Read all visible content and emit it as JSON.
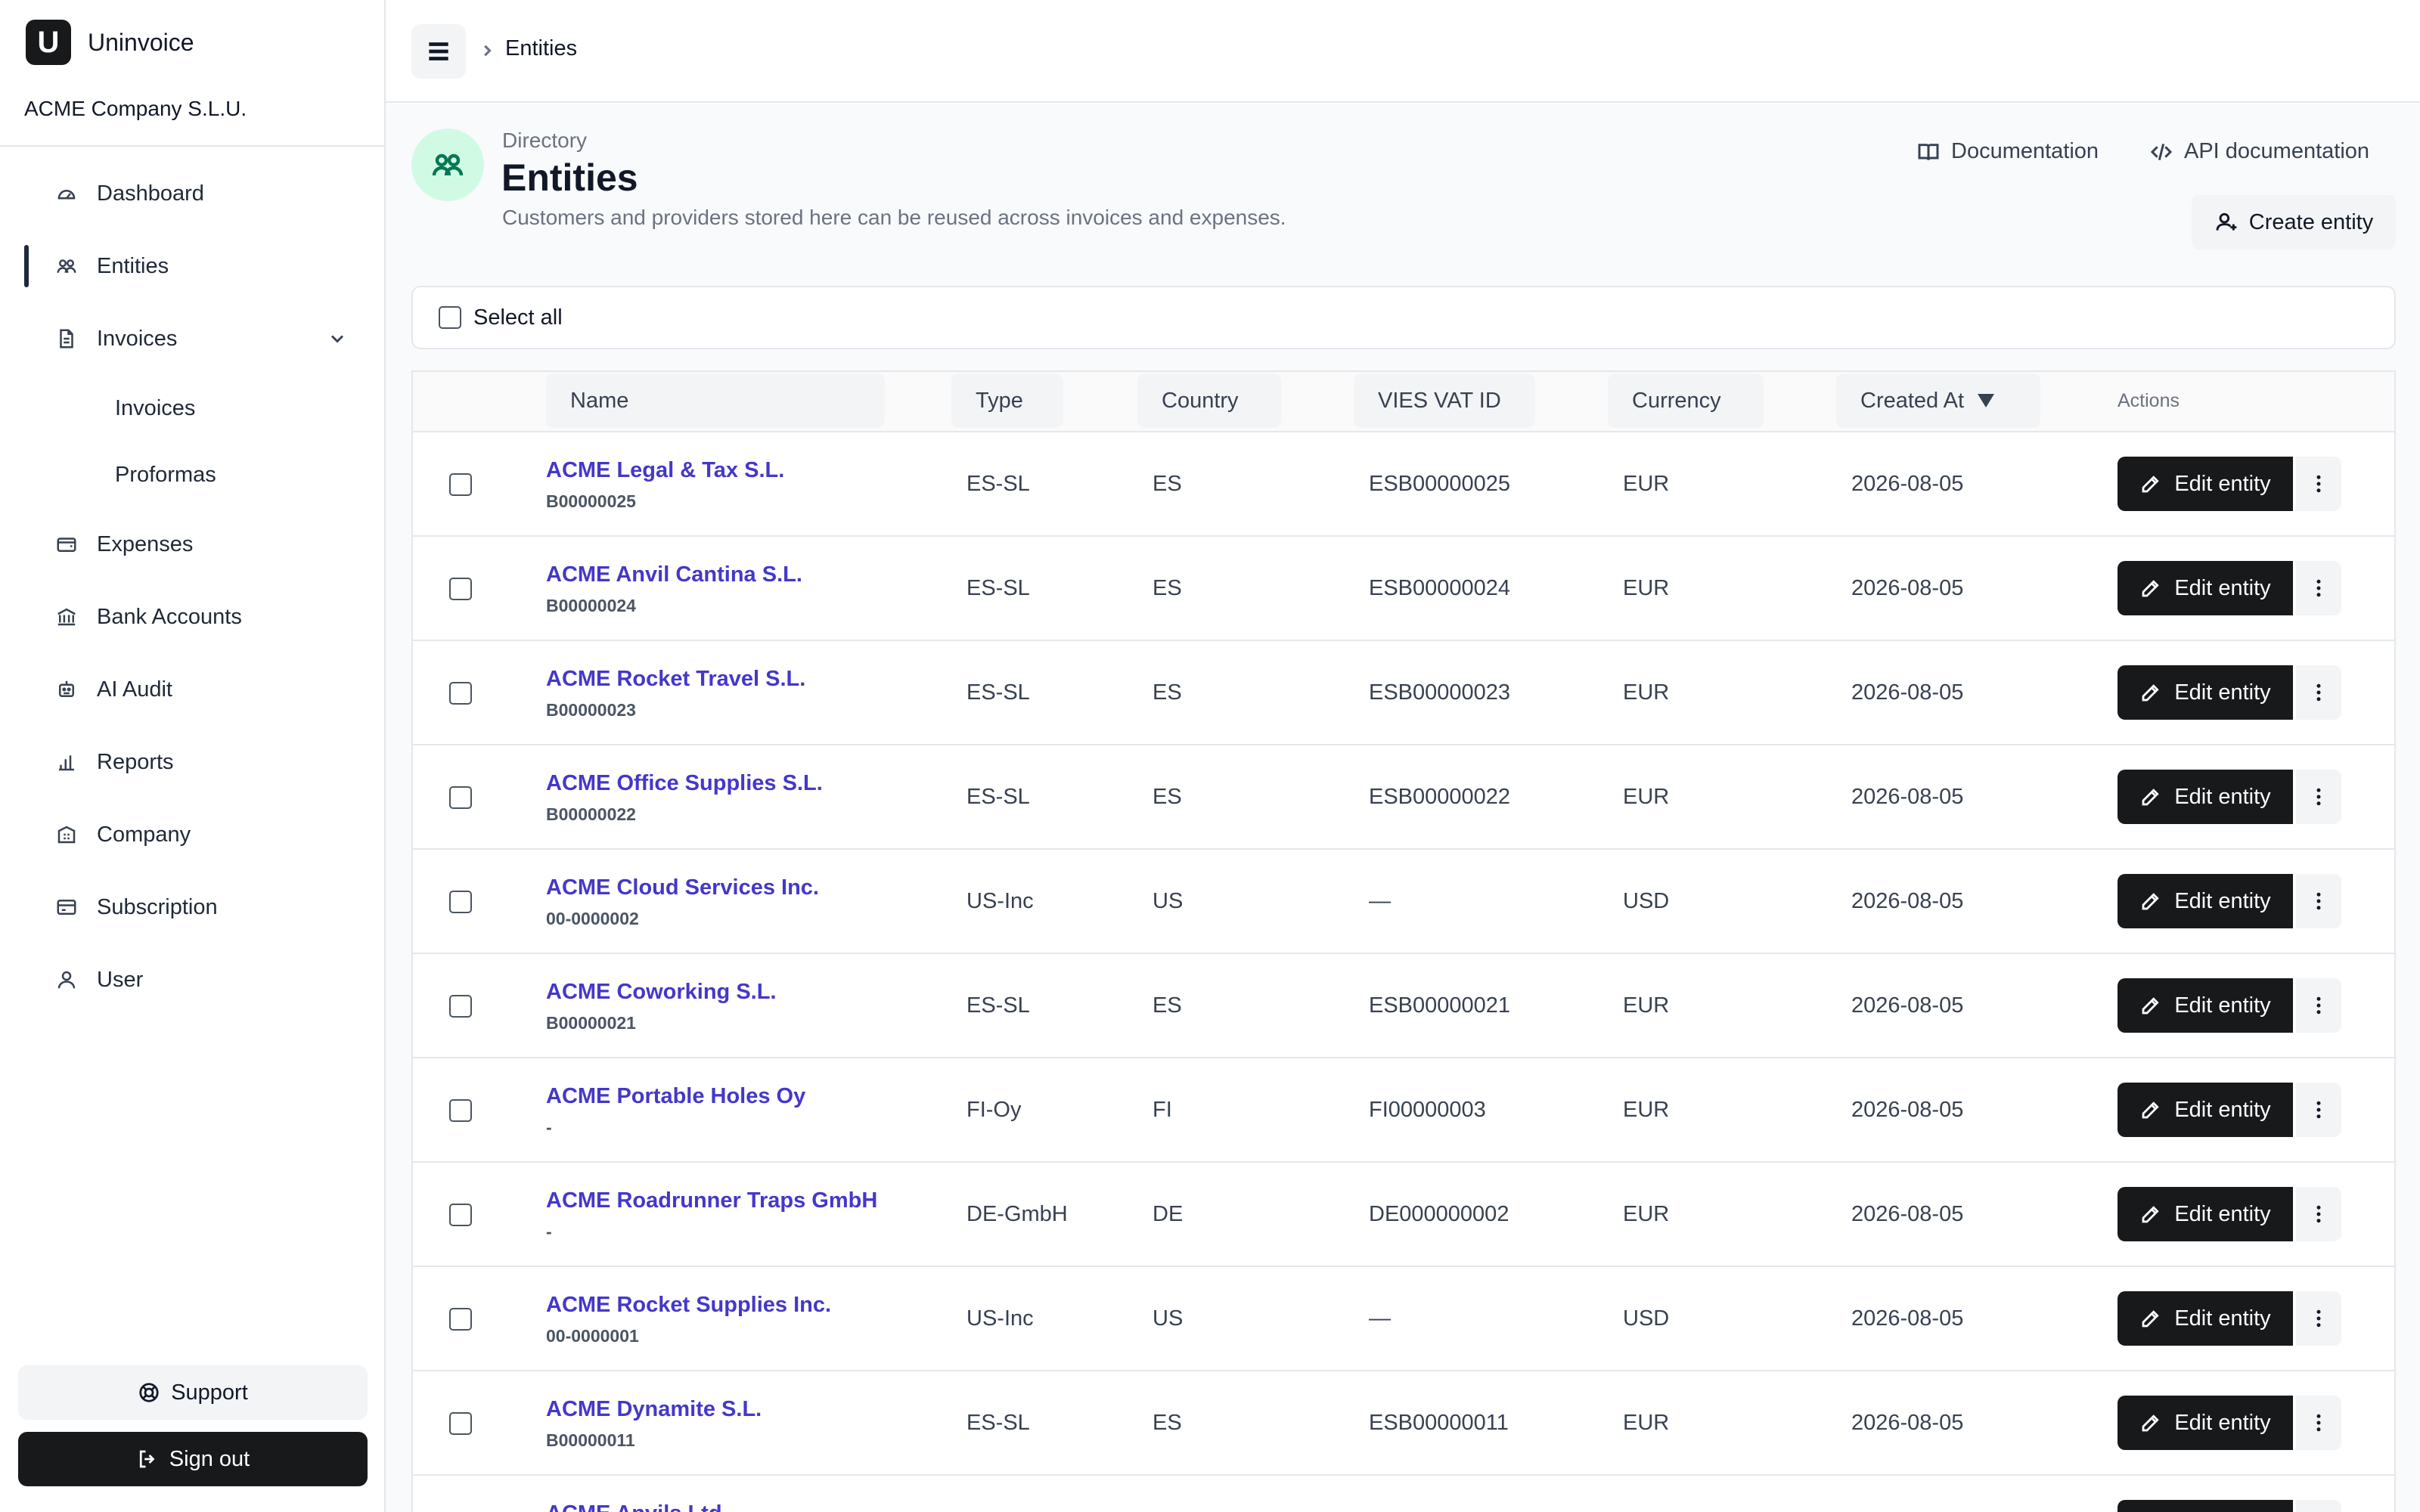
{
  "app": {
    "logo_letter": "U",
    "name": "Uninvoice",
    "company": "ACME Company S.L.U."
  },
  "sidebar": {
    "items": [
      {
        "label": "Dashboard",
        "icon": "dashboard-gauge-icon"
      },
      {
        "label": "Entities",
        "icon": "users-icon",
        "active": true
      },
      {
        "label": "Invoices",
        "icon": "document-icon",
        "expanded": true
      },
      {
        "label": "Expenses",
        "icon": "wallet-icon"
      },
      {
        "label": "Bank Accounts",
        "icon": "bank-icon"
      },
      {
        "label": "AI Audit",
        "icon": "robot-icon"
      },
      {
        "label": "Reports",
        "icon": "bar-chart-icon"
      },
      {
        "label": "Company",
        "icon": "building-icon"
      },
      {
        "label": "Subscription",
        "icon": "credit-card-icon"
      },
      {
        "label": "User",
        "icon": "user-icon"
      }
    ],
    "invoices_sub": [
      {
        "label": "Invoices"
      },
      {
        "label": "Proformas"
      }
    ],
    "support_label": "Support",
    "signout_label": "Sign out"
  },
  "topbar": {
    "breadcrumb": "Entities"
  },
  "header": {
    "eyebrow": "Directory",
    "title": "Entities",
    "description": "Customers and providers stored here can be reused across invoices and expenses.",
    "doc_link": "Documentation",
    "api_doc_link": "API documentation",
    "create_label": "Create entity"
  },
  "select_all_label": "Select all",
  "table": {
    "columns": {
      "name": "Name",
      "type": "Type",
      "country": "Country",
      "vat": "VIES VAT ID",
      "currency": "Currency",
      "created": "Created At",
      "actions": "Actions"
    },
    "sort": {
      "column": "Created At",
      "direction": "desc"
    },
    "edit_label": "Edit entity",
    "rows": [
      {
        "name": "ACME Legal & Tax S.L.",
        "tax_id": "B00000025",
        "type": "ES-SL",
        "country": "ES",
        "vat": "ESB00000025",
        "currency": "EUR",
        "created": "2026-08-05"
      },
      {
        "name": "ACME Anvil Cantina S.L.",
        "tax_id": "B00000024",
        "type": "ES-SL",
        "country": "ES",
        "vat": "ESB00000024",
        "currency": "EUR",
        "created": "2026-08-05"
      },
      {
        "name": "ACME Rocket Travel S.L.",
        "tax_id": "B00000023",
        "type": "ES-SL",
        "country": "ES",
        "vat": "ESB00000023",
        "currency": "EUR",
        "created": "2026-08-05"
      },
      {
        "name": "ACME Office Supplies S.L.",
        "tax_id": "B00000022",
        "type": "ES-SL",
        "country": "ES",
        "vat": "ESB00000022",
        "currency": "EUR",
        "created": "2026-08-05"
      },
      {
        "name": "ACME Cloud Services Inc.",
        "tax_id": "00-0000002",
        "type": "US-Inc",
        "country": "US",
        "vat": "—",
        "currency": "USD",
        "created": "2026-08-05"
      },
      {
        "name": "ACME Coworking S.L.",
        "tax_id": "B00000021",
        "type": "ES-SL",
        "country": "ES",
        "vat": "ESB00000021",
        "currency": "EUR",
        "created": "2026-08-05"
      },
      {
        "name": "ACME Portable Holes Oy",
        "tax_id": "-",
        "type": "FI-Oy",
        "country": "FI",
        "vat": "FI00000003",
        "currency": "EUR",
        "created": "2026-08-05"
      },
      {
        "name": "ACME Roadrunner Traps GmbH",
        "tax_id": "-",
        "type": "DE-GmbH",
        "country": "DE",
        "vat": "DE000000002",
        "currency": "EUR",
        "created": "2026-08-05"
      },
      {
        "name": "ACME Rocket Supplies Inc.",
        "tax_id": "00-0000001",
        "type": "US-Inc",
        "country": "US",
        "vat": "—",
        "currency": "USD",
        "created": "2026-08-05"
      },
      {
        "name": "ACME Dynamite S.L.",
        "tax_id": "B00000011",
        "type": "ES-SL",
        "country": "ES",
        "vat": "ESB00000011",
        "currency": "EUR",
        "created": "2026-08-05"
      },
      {
        "name": "ACME Anvils Ltd",
        "tax_id": "",
        "type": "",
        "country": "",
        "vat": "",
        "currency": "",
        "created": ""
      }
    ]
  },
  "colors": {
    "accent_link": "#4338ca",
    "primary_button": "#18191b",
    "avatar_bg": "#d1fae5",
    "avatar_icon": "#047857"
  }
}
